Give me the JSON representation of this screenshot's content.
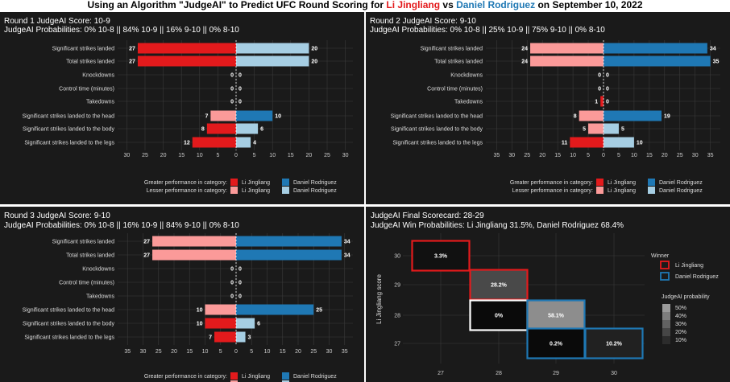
{
  "header": {
    "title_pre": "Using an Algorithm \"JudgeAI\" to Predict UFC Round Scoring for ",
    "fighter_a": "Li Jingliang",
    "title_vs": " vs ",
    "fighter_b": "Daniel Rodriguez",
    "title_post": " on September 10, 2022"
  },
  "colors": {
    "background": "#1a1a1a",
    "grid": "#3a3a3a",
    "fighter_a_greater": "#e31a1c",
    "fighter_a_lesser": "#fb9a99",
    "fighter_b_greater": "#1f78b4",
    "fighter_b_lesser": "#a6cee3"
  },
  "legend": {
    "greater_label": "Greater performance in category:",
    "lesser_label": "Lesser performance in category:",
    "fighter_a": "Li Jingliang",
    "fighter_b": "Daniel Rodriguez"
  },
  "chart_data": [
    {
      "type": "bar",
      "title": "Round 1 JudgeAI Score: 10-9",
      "subtitle": "JudgeAI Probabilities: 0% 10-8 || 84% 10-9 || 16% 9-10 || 0% 8-10",
      "categories": [
        "Significant strikes landed",
        "Total strikes landed",
        "Knockdowns",
        "Control time (minutes)",
        "Takedowns",
        "Significant strikes landed to the head",
        "Significant strikes landed to the body",
        "Significant strikes landed to the legs"
      ],
      "series": [
        {
          "name": "Li Jingliang",
          "values": [
            27,
            27,
            0,
            0,
            0,
            7,
            8,
            12
          ],
          "labels": [
            "27",
            "27",
            "0",
            "0",
            "0",
            "7",
            "8",
            "12"
          ]
        },
        {
          "name": "Daniel Rodriguez",
          "values": [
            20,
            20,
            0,
            0,
            0,
            10,
            6,
            4
          ],
          "labels": [
            "20",
            "20",
            "0",
            "0",
            "0",
            "10",
            "6",
            "4"
          ]
        }
      ],
      "ticks": [
        30,
        25,
        20,
        15,
        10,
        5,
        0,
        5,
        10,
        15,
        20,
        25,
        30
      ],
      "xlim": [
        -33,
        33
      ]
    },
    {
      "type": "bar",
      "title": "Round 2 JudgeAI Score: 9-10",
      "subtitle": "JudgeAI Probabilities: 0% 10-8 || 25% 10-9 || 75% 9-10 || 0% 8-10",
      "categories": [
        "Significant strikes landed",
        "Total strikes landed",
        "Knockdowns",
        "Control time (minutes)",
        "Takedowns",
        "Significant strikes landed to the head",
        "Significant strikes landed to the body",
        "Significant strikes landed to the legs"
      ],
      "series": [
        {
          "name": "Li Jingliang",
          "values": [
            24,
            24,
            0,
            0,
            1,
            8,
            5,
            11
          ],
          "labels": [
            "24",
            "24",
            "0",
            "0",
            "1",
            "8",
            "5",
            "11"
          ]
        },
        {
          "name": "Daniel Rodriguez",
          "values": [
            34,
            35,
            0,
            0,
            0,
            19,
            5,
            10
          ],
          "labels": [
            "34",
            "35",
            "0",
            "0",
            "0",
            "19",
            "5",
            "10"
          ]
        }
      ],
      "ticks": [
        35,
        30,
        25,
        20,
        15,
        10,
        5,
        0,
        5,
        10,
        15,
        20,
        25,
        30,
        35
      ],
      "xlim": [
        -38,
        38
      ]
    },
    {
      "type": "bar",
      "title": "Round 3 JudgeAI Score: 9-10",
      "subtitle": "JudgeAI Probabilities: 0% 10-8 || 16% 10-9 || 84% 9-10 || 0% 8-10",
      "categories": [
        "Significant strikes landed",
        "Total strikes landed",
        "Knockdowns",
        "Control time (minutes)",
        "Takedowns",
        "Significant strikes landed to the head",
        "Significant strikes landed to the body",
        "Significant strikes landed to the legs"
      ],
      "series": [
        {
          "name": "Li Jingliang",
          "values": [
            27,
            27,
            0,
            0,
            0,
            10,
            10,
            7
          ],
          "labels": [
            "27",
            "27",
            "0",
            "0",
            "0",
            "10",
            "10",
            "7"
          ]
        },
        {
          "name": "Daniel Rodriguez",
          "values": [
            34,
            34,
            0,
            0,
            0,
            25,
            6,
            3
          ],
          "labels": [
            "34",
            "34",
            "0",
            "0",
            "0",
            "25",
            "6",
            "3"
          ]
        }
      ],
      "ticks": [
        35,
        30,
        25,
        20,
        15,
        10,
        5,
        0,
        5,
        10,
        15,
        20,
        25,
        30,
        35
      ],
      "xlim": [
        -38,
        38
      ]
    },
    {
      "type": "heatmap",
      "title": "JudgeAI Final Scorecard: 28-29",
      "subtitle": "JudgeAI Win Probabilities: Li Jingliang 31.5%, Daniel Rodriguez 68.4%",
      "xlabel": "",
      "ylabel": "Li Jingliang score",
      "x_categories": [
        "27",
        "28",
        "29",
        "30"
      ],
      "y_categories": [
        "27",
        "28",
        "29",
        "30"
      ],
      "cells": [
        {
          "x": "27",
          "y": "30",
          "probability": 3.3,
          "label": "3.3%",
          "winner": "Li Jingliang"
        },
        {
          "x": "28",
          "y": "29",
          "probability": 28.2,
          "label": "28.2%",
          "winner": "Li Jingliang"
        },
        {
          "x": "28",
          "y": "28",
          "probability": 0,
          "label": "0%",
          "winner": "Draw"
        },
        {
          "x": "29",
          "y": "28",
          "probability": 58.1,
          "label": "58.1%",
          "winner": "Daniel Rodriguez"
        },
        {
          "x": "29",
          "y": "27",
          "probability": 0.2,
          "label": "0.2%",
          "winner": "Daniel Rodriguez"
        },
        {
          "x": "30",
          "y": "27",
          "probability": 10.2,
          "label": "10.2%",
          "winner": "Daniel Rodriguez"
        }
      ],
      "legend_winner": {
        "title": "Winner",
        "items": [
          "Li Jingliang",
          "Daniel Rodriguez"
        ]
      },
      "legend_probability": {
        "title": "JudgeAI probability",
        "items": [
          "50%",
          "40%",
          "30%",
          "20%",
          "10%"
        ]
      }
    }
  ]
}
